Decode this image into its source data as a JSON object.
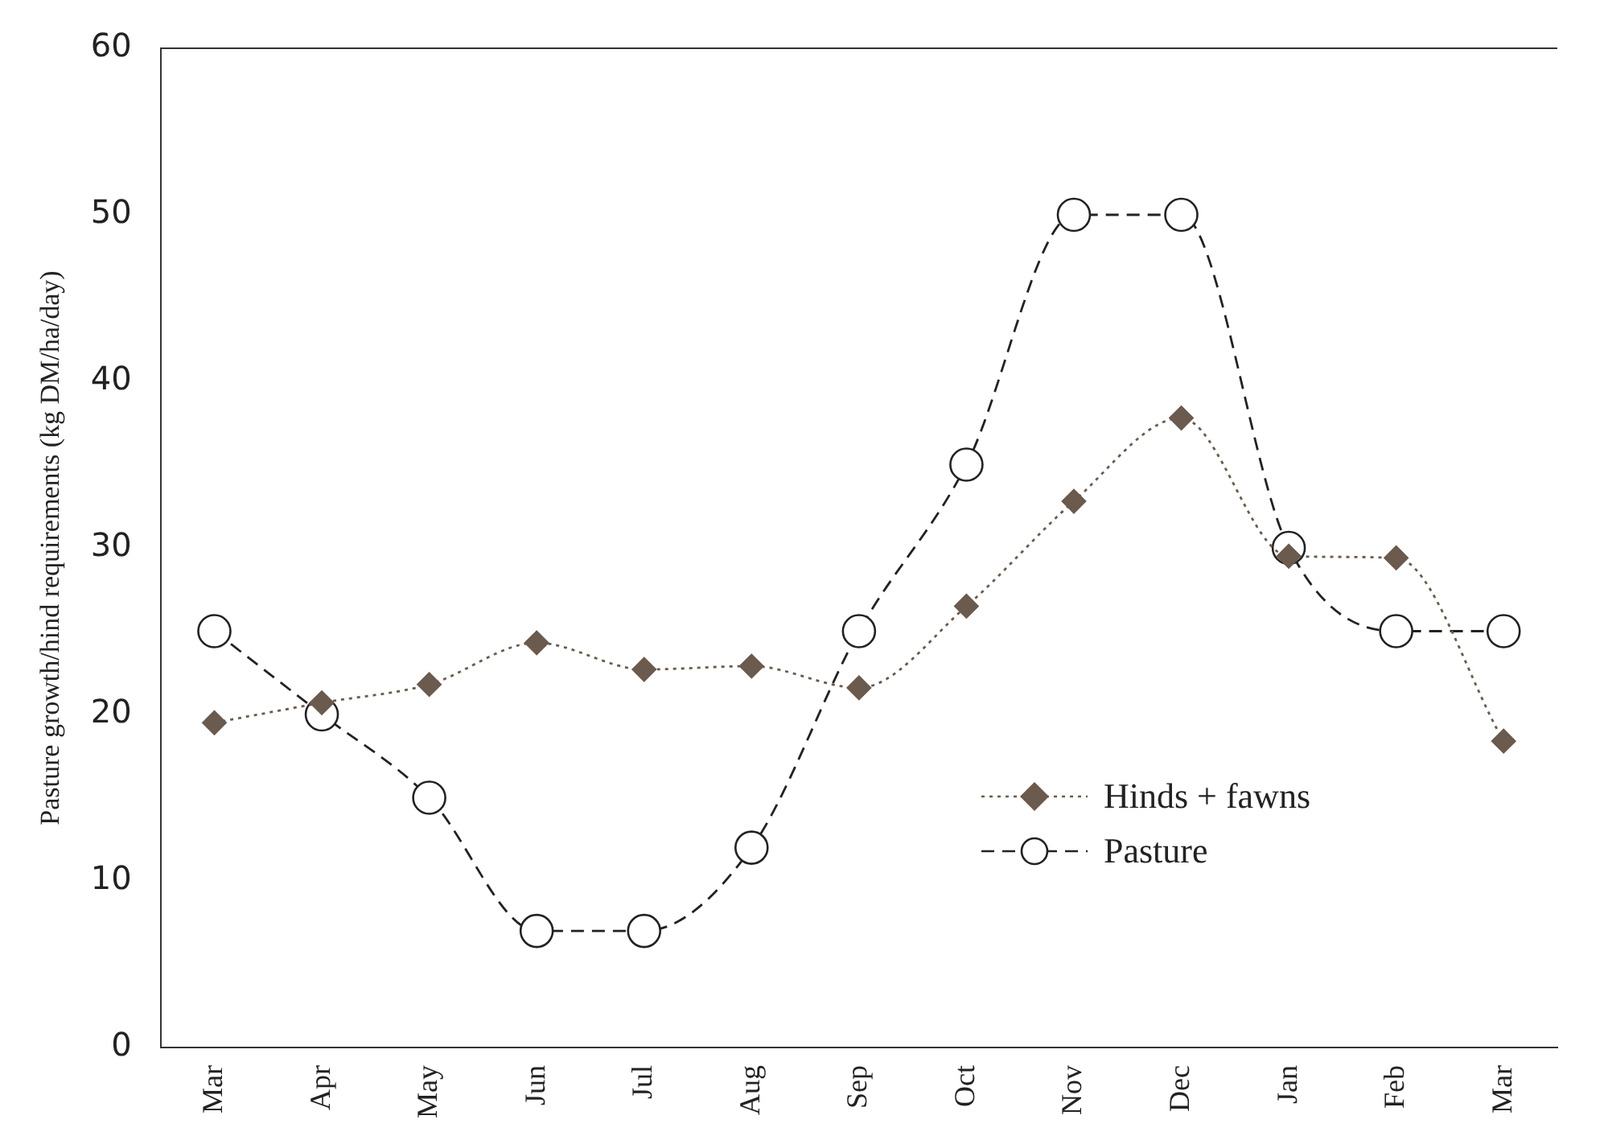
{
  "chart_data": {
    "type": "line",
    "ylabel": "Pasture growth/hind requirements (kg DM/ha/day)",
    "categories": [
      "Mar",
      "Apr",
      "May",
      "Jun",
      "Jul",
      "Aug",
      "Sep",
      "Oct",
      "Nov",
      "Dec",
      "Jan",
      "Feb",
      "Mar"
    ],
    "series": [
      {
        "name": "Hinds + fawns",
        "color": "#6b5a4e",
        "marker": "diamond",
        "line_style": "dotted",
        "values": [
          19.5,
          20.7,
          21.8,
          24.3,
          22.7,
          22.9,
          21.6,
          26.5,
          32.8,
          37.8,
          29.5,
          29.4,
          18.4
        ]
      },
      {
        "name": "Pasture",
        "color": "#222222",
        "marker": "circle",
        "line_style": "dashed",
        "values": [
          25,
          20,
          15,
          7,
          7,
          12,
          25,
          35,
          50,
          50,
          30,
          25,
          25
        ]
      }
    ],
    "ylim": [
      0,
      60
    ],
    "yticks": [
      0,
      10,
      20,
      30,
      40,
      50,
      60
    ],
    "grid": false,
    "legend": "bottom right"
  }
}
